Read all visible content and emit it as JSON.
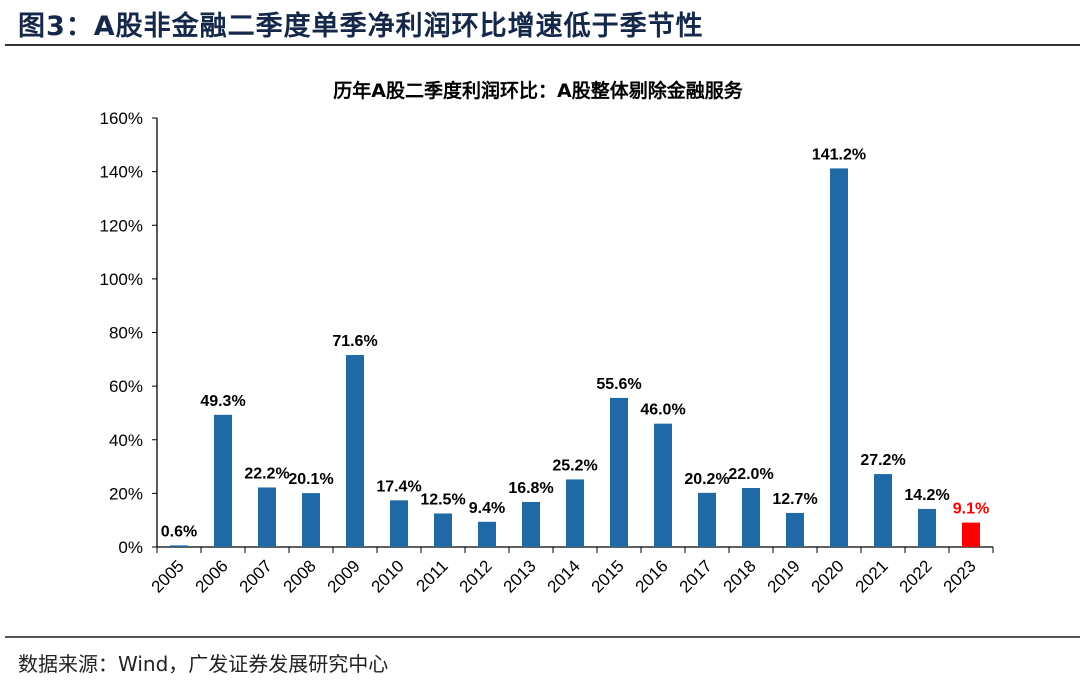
{
  "figure_title": "图3：A股非金融二季度单季净利润环比增速低于季节性",
  "source": "数据来源：Wind，广发证券发展研究中心",
  "chart_data": {
    "type": "bar",
    "title": "历年A股二季度利润环比：A股整体剔除金融服务",
    "xlabel": "",
    "ylabel": "",
    "ylim": [
      0,
      160
    ],
    "yticks": [
      "0%",
      "20%",
      "40%",
      "60%",
      "80%",
      "100%",
      "120%",
      "140%",
      "160%"
    ],
    "grid": false,
    "categories": [
      "2005",
      "2006",
      "2007",
      "2008",
      "2009",
      "2010",
      "2011",
      "2012",
      "2013",
      "2014",
      "2015",
      "2016",
      "2017",
      "2018",
      "2019",
      "2020",
      "2021",
      "2022",
      "2023"
    ],
    "values": [
      0.6,
      49.3,
      22.2,
      20.1,
      71.6,
      17.4,
      12.5,
      9.4,
      16.8,
      25.2,
      55.6,
      46.0,
      20.2,
      22.0,
      12.7,
      141.2,
      27.2,
      14.2,
      9.1
    ],
    "data_labels": [
      "0.6%",
      "49.3%",
      "22.2%",
      "20.1%",
      "71.6%",
      "17.4%",
      "12.5%",
      "9.4%",
      "16.8%",
      "25.2%",
      "55.6%",
      "46.0%",
      "20.2%",
      "22.0%",
      "12.7%",
      "141.2%",
      "27.2%",
      "14.2%",
      "9.1%"
    ],
    "colors": {
      "default": "#1f69a6",
      "highlight": "#ff0000"
    },
    "highlight_category": "2023"
  }
}
